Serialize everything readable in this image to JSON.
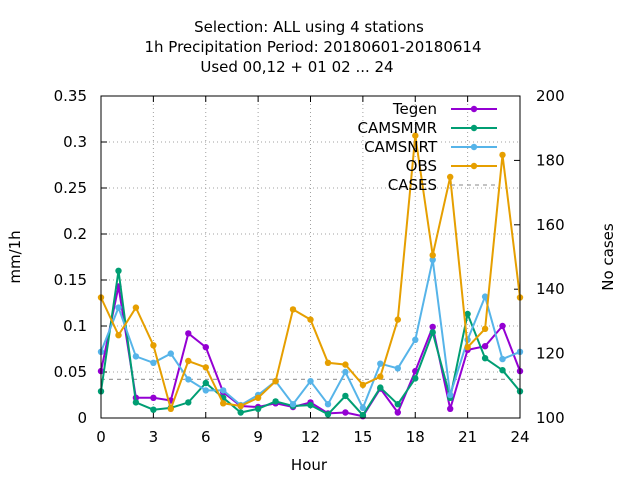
{
  "chart_data": {
    "type": "line",
    "title_lines": [
      "Selection: ALL using     4 stations",
      "1h Precipitation   Period: 20180601-20180614",
      "Used  00,12  + 01 02 ... 24"
    ],
    "xlabel": "Hour",
    "ylabel": "mm/1h",
    "y2label": "No cases",
    "xlim": [
      0,
      24
    ],
    "ylim": [
      0,
      0.35
    ],
    "y2lim": [
      100,
      200
    ],
    "grid": true,
    "legend_position": "top-right",
    "x_ticks": [
      0,
      3,
      6,
      9,
      12,
      15,
      18,
      21,
      24
    ],
    "y_ticks": [
      "0",
      "0.05",
      "0.1",
      "0.15",
      "0.2",
      "0.25",
      "0.3",
      "0.35"
    ],
    "y2_ticks": [
      "100",
      "120",
      "140",
      "160",
      "180",
      "200"
    ],
    "x": [
      0,
      1,
      2,
      3,
      4,
      5,
      6,
      7,
      8,
      9,
      10,
      11,
      12,
      13,
      14,
      15,
      16,
      17,
      18,
      19,
      20,
      21,
      22,
      23,
      24
    ],
    "series": [
      {
        "name": "Tegen",
        "color": "#9400d3",
        "axis": "y",
        "values": [
          0.051,
          0.143,
          0.022,
          0.022,
          0.019,
          0.092,
          0.077,
          0.028,
          0.013,
          0.012,
          0.016,
          0.012,
          0.017,
          0.005,
          0.006,
          0.002,
          0.032,
          0.006,
          0.051,
          0.099,
          0.01,
          0.074,
          0.078,
          0.1,
          0.051
        ]
      },
      {
        "name": "CAMSMMR",
        "color": "#009e73",
        "axis": "y",
        "values": [
          0.029,
          0.16,
          0.017,
          0.009,
          0.011,
          0.017,
          0.038,
          0.022,
          0.006,
          0.01,
          0.018,
          0.013,
          0.014,
          0.004,
          0.024,
          0.003,
          0.033,
          0.015,
          0.043,
          0.093,
          0.022,
          0.113,
          0.065,
          0.052,
          0.029
        ]
      },
      {
        "name": "CAMSNRT",
        "color": "#56b4e9",
        "axis": "y",
        "values": [
          0.072,
          0.12,
          0.067,
          0.06,
          0.07,
          0.042,
          0.03,
          0.03,
          0.014,
          0.025,
          0.04,
          0.015,
          0.04,
          0.015,
          0.05,
          0.011,
          0.059,
          0.054,
          0.085,
          0.172,
          0.025,
          0.085,
          0.132,
          0.064,
          0.072
        ]
      },
      {
        "name": "OBS",
        "color": "#e69f00",
        "axis": "y",
        "values": [
          0.131,
          0.09,
          0.12,
          0.079,
          0.01,
          0.062,
          0.055,
          0.016,
          0.013,
          0.022,
          0.04,
          0.118,
          0.107,
          0.06,
          0.058,
          0.036,
          0.045,
          0.107,
          0.307,
          0.177,
          0.262,
          0.077,
          0.097,
          0.286,
          0.131
        ]
      },
      {
        "name": "CASES",
        "color": "#a0a0a0",
        "axis": "y2",
        "dashed": true,
        "values": [
          112,
          112,
          112,
          112,
          112,
          112,
          112,
          112,
          112,
          112,
          112,
          112,
          112,
          112,
          112,
          112,
          112,
          112,
          112,
          112,
          112,
          112,
          112,
          112,
          112
        ]
      }
    ]
  }
}
